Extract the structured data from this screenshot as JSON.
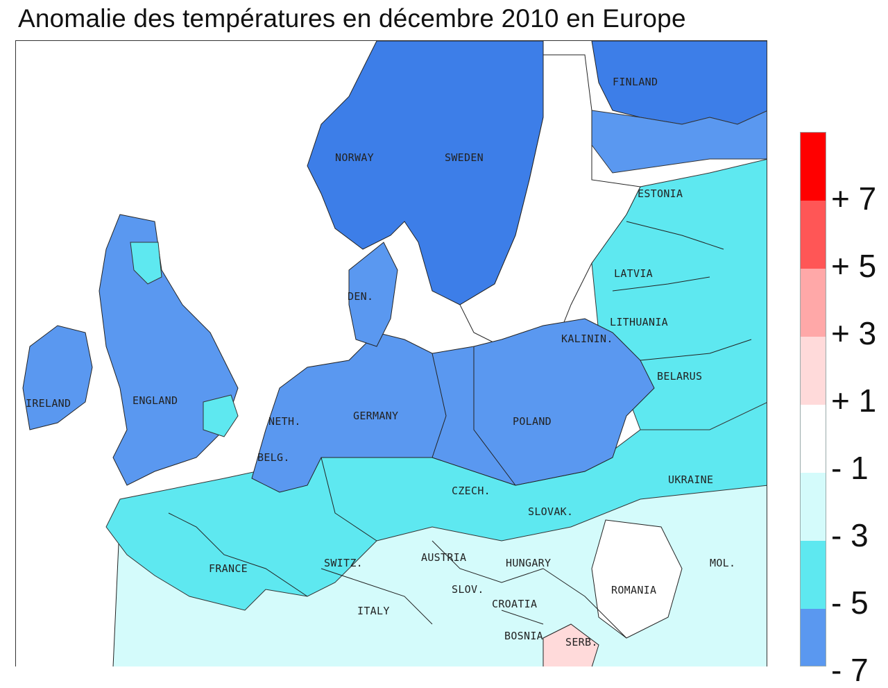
{
  "title": "Anomalie des températures en décembre 2010 en Europe",
  "legend": {
    "colors": [
      "#ff0000",
      "#ff5656",
      "#ffa8a8",
      "#ffdada",
      "#ffffff",
      "#d4fbfb",
      "#5ee8f0",
      "#5a98f0"
    ],
    "labels": [
      "+ 7",
      "+ 5",
      "+ 3",
      "+ 1",
      "- 1",
      "- 3",
      "- 5",
      "- 7"
    ]
  },
  "colors": {
    "very_cold": "#3d7ee8",
    "cold": "#5a98f0",
    "cool": "#5ee8f0",
    "mild_cool": "#d4fbfb",
    "neutral": "#ffffff",
    "warm": "#ffdada"
  },
  "countries": {
    "norway": "NORWAY",
    "sweden": "SWEDEN",
    "finland": "FINLAND",
    "estonia": "ESTONIA",
    "latvia": "LATVIA",
    "lithuania": "LITHUANIA",
    "kalinin": "KALININ.",
    "belarus": "BELARUS",
    "denmark": "DEN.",
    "ireland": "IRELAND",
    "england": "ENGLAND",
    "netherlands": "NETH.",
    "germany": "GERMANY",
    "poland": "POLAND",
    "belgium": "BELG.",
    "ukraine": "UKRAINE",
    "czech": "CZECH.",
    "slovakia": "SLOVAK.",
    "france": "FRANCE",
    "switzerland": "SWITZ.",
    "austria": "AUSTRIA",
    "hungary": "HUNGARY",
    "moldova": "MOL.",
    "romania": "ROMANIA",
    "slovenia": "SLOV.",
    "croatia": "CROATIA",
    "italy": "ITALY",
    "bosnia": "BOSNIA",
    "serbia": "SERB."
  }
}
